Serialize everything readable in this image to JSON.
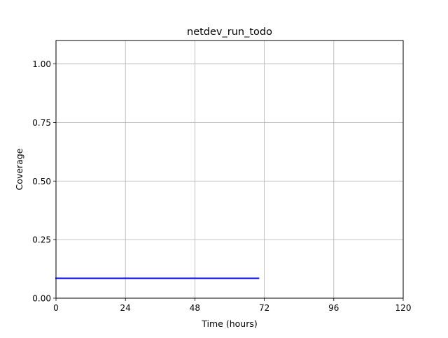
{
  "chart_data": {
    "type": "line",
    "title": "netdev_run_todo",
    "xlabel": "Time (hours)",
    "ylabel": "Coverage",
    "xlim": [
      0,
      120
    ],
    "ylim": [
      0,
      1.1
    ],
    "xticks": [
      0,
      24,
      48,
      72,
      96,
      120
    ],
    "xtick_labels": [
      "0",
      "24",
      "48",
      "72",
      "96",
      "120"
    ],
    "yticks": [
      0,
      0.25,
      0.5,
      0.75,
      1.0
    ],
    "ytick_labels": [
      "0.00",
      "0.25",
      "0.50",
      "0.75",
      "1.00"
    ],
    "grid": true,
    "legend": "none",
    "series": [
      {
        "color": "#0000ff",
        "x": [
          0,
          70
        ],
        "y": [
          0.085,
          0.085
        ]
      }
    ]
  }
}
